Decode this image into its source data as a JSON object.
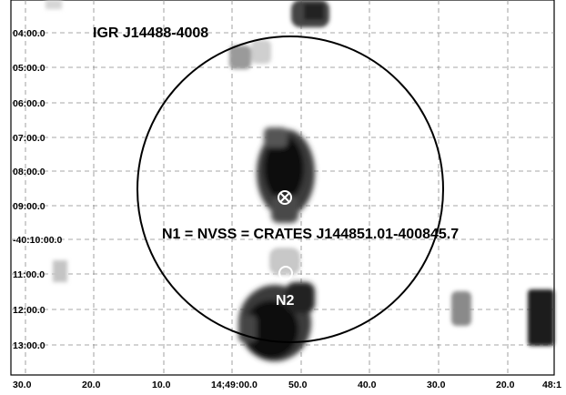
{
  "figure": {
    "source_name": "IGR J14488-4008",
    "source_id_label": "N1 = NVSS = CRATES J144851.01-400845.7",
    "second_source_label": "N2",
    "dec_ticks": [
      "04:00.0",
      "05:00.0",
      "06:00.0",
      "07:00.0",
      "08:00.0",
      "09:00.0",
      "-40:10:00.0",
      "11:00.0",
      "12:00.0",
      "13:00.0"
    ],
    "ra_ticks": [
      "30.0",
      "20.0",
      "10.0",
      "14;49:00.0",
      "50.0",
      "40.0",
      "30.0",
      "20.0",
      "48:1"
    ],
    "colors": {
      "ink": "#000000",
      "grid": "#888888",
      "background": "#ffffff"
    }
  }
}
